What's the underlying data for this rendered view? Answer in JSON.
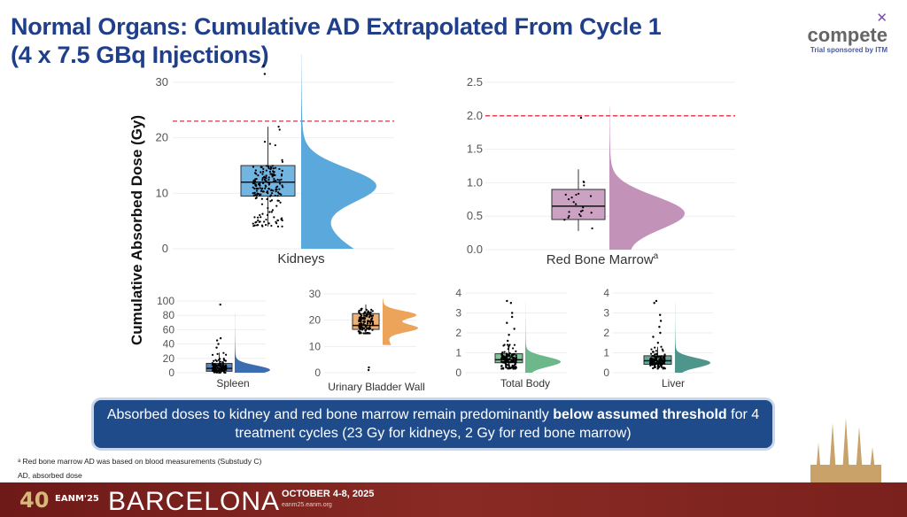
{
  "title_line1": "Normal Organs: Cumulative AD Extrapolated From Cycle 1",
  "title_line2": "(4 x 7.5 GBq Injections)",
  "logo": {
    "name": "compete",
    "subtitle": "Trial sponsored by ITM"
  },
  "callout": {
    "pre": "Absorbed doses to kidney and red bone marrow remain predominantly ",
    "bold": "below assumed threshold",
    "post": " for 4 treatment cycles (23 Gy for kidneys, 2 Gy for red bone marrow)"
  },
  "footnotes": [
    "ᵃ Red bone marrow AD was based on blood measurements (Substudy C)",
    "AD, absorbed dose"
  ],
  "footer": {
    "anniv": "40",
    "eanm": "EANM'25",
    "city": "BARCELONA",
    "dates": "OCTOBER 4-8, 2025",
    "url": "eanm25.eanm.org"
  },
  "colors": {
    "title": "#1f3f8a",
    "threshold": "#e0303a"
  },
  "chart_data": {
    "type": "raincloud",
    "ylabel": "Cumulative Absorbed Dose (Gy)",
    "panels": [
      {
        "name": "Kidneys",
        "sup": "",
        "color": "#5aa8dc",
        "yticks": [
          0,
          10,
          20,
          30
        ],
        "ylim": [
          0,
          33
        ],
        "threshold": 23,
        "box": {
          "min": 4,
          "q1": 9.5,
          "median": 12,
          "q3": 15,
          "max": 22
        },
        "outliers": [
          31.5,
          33
        ],
        "modes": [
          11.5
        ],
        "n": 180
      },
      {
        "name": "Red Bone Marrow",
        "sup": "a",
        "color": "#c392b8",
        "yticks": [
          0.0,
          0.5,
          1.0,
          1.5,
          2.0,
          2.5
        ],
        "ylim": [
          0,
          2.5
        ],
        "threshold": 2.0,
        "box": {
          "min": 0.28,
          "q1": 0.45,
          "median": 0.65,
          "q3": 0.9,
          "max": 1.2
        },
        "outliers": [
          1.97
        ],
        "modes": [
          0.55
        ],
        "n": 22
      },
      {
        "name": "Spleen",
        "sup": "",
        "color": "#3a6eb0",
        "yticks": [
          0,
          20,
          40,
          60,
          80,
          100
        ],
        "ylim": [
          0,
          100
        ],
        "threshold": null,
        "box": {
          "min": 0,
          "q1": 2,
          "median": 6,
          "q3": 13,
          "max": 28
        },
        "outliers": [
          35,
          40,
          45,
          48,
          95
        ],
        "modes": [
          4
        ],
        "n": 120
      },
      {
        "name": "Urinary Bladder Wall",
        "sup": "",
        "color": "#eca35a",
        "yticks": [
          0,
          10,
          20,
          30
        ],
        "ylim": [
          0,
          30
        ],
        "threshold": null,
        "box": {
          "min": 15,
          "q1": 16.5,
          "median": 18,
          "q3": 22.5,
          "max": 26
        },
        "outliers": [
          1,
          2
        ],
        "modes": [
          17,
          22
        ],
        "n": 120
      },
      {
        "name": "Total Body",
        "sup": "",
        "color": "#6cb88a",
        "yticks": [
          0,
          1,
          2,
          3,
          4
        ],
        "ylim": [
          0,
          4
        ],
        "threshold": null,
        "box": {
          "min": 0.2,
          "q1": 0.5,
          "median": 0.65,
          "q3": 0.95,
          "max": 1.4
        },
        "outliers": [
          1.6,
          1.9,
          2.2,
          2.5,
          2.8,
          3.0,
          3.5,
          3.6
        ],
        "modes": [
          0.55
        ],
        "n": 150
      },
      {
        "name": "Liver",
        "sup": "",
        "color": "#4e968c",
        "yticks": [
          0,
          1,
          2,
          3,
          4
        ],
        "ylim": [
          0,
          4
        ],
        "threshold": null,
        "box": {
          "min": 0.2,
          "q1": 0.42,
          "median": 0.6,
          "q3": 0.85,
          "max": 1.3
        },
        "outliers": [
          1.5,
          1.8,
          2.0,
          2.3,
          2.6,
          2.9,
          3.5,
          3.6
        ],
        "modes": [
          0.5
        ],
        "n": 150
      }
    ]
  }
}
